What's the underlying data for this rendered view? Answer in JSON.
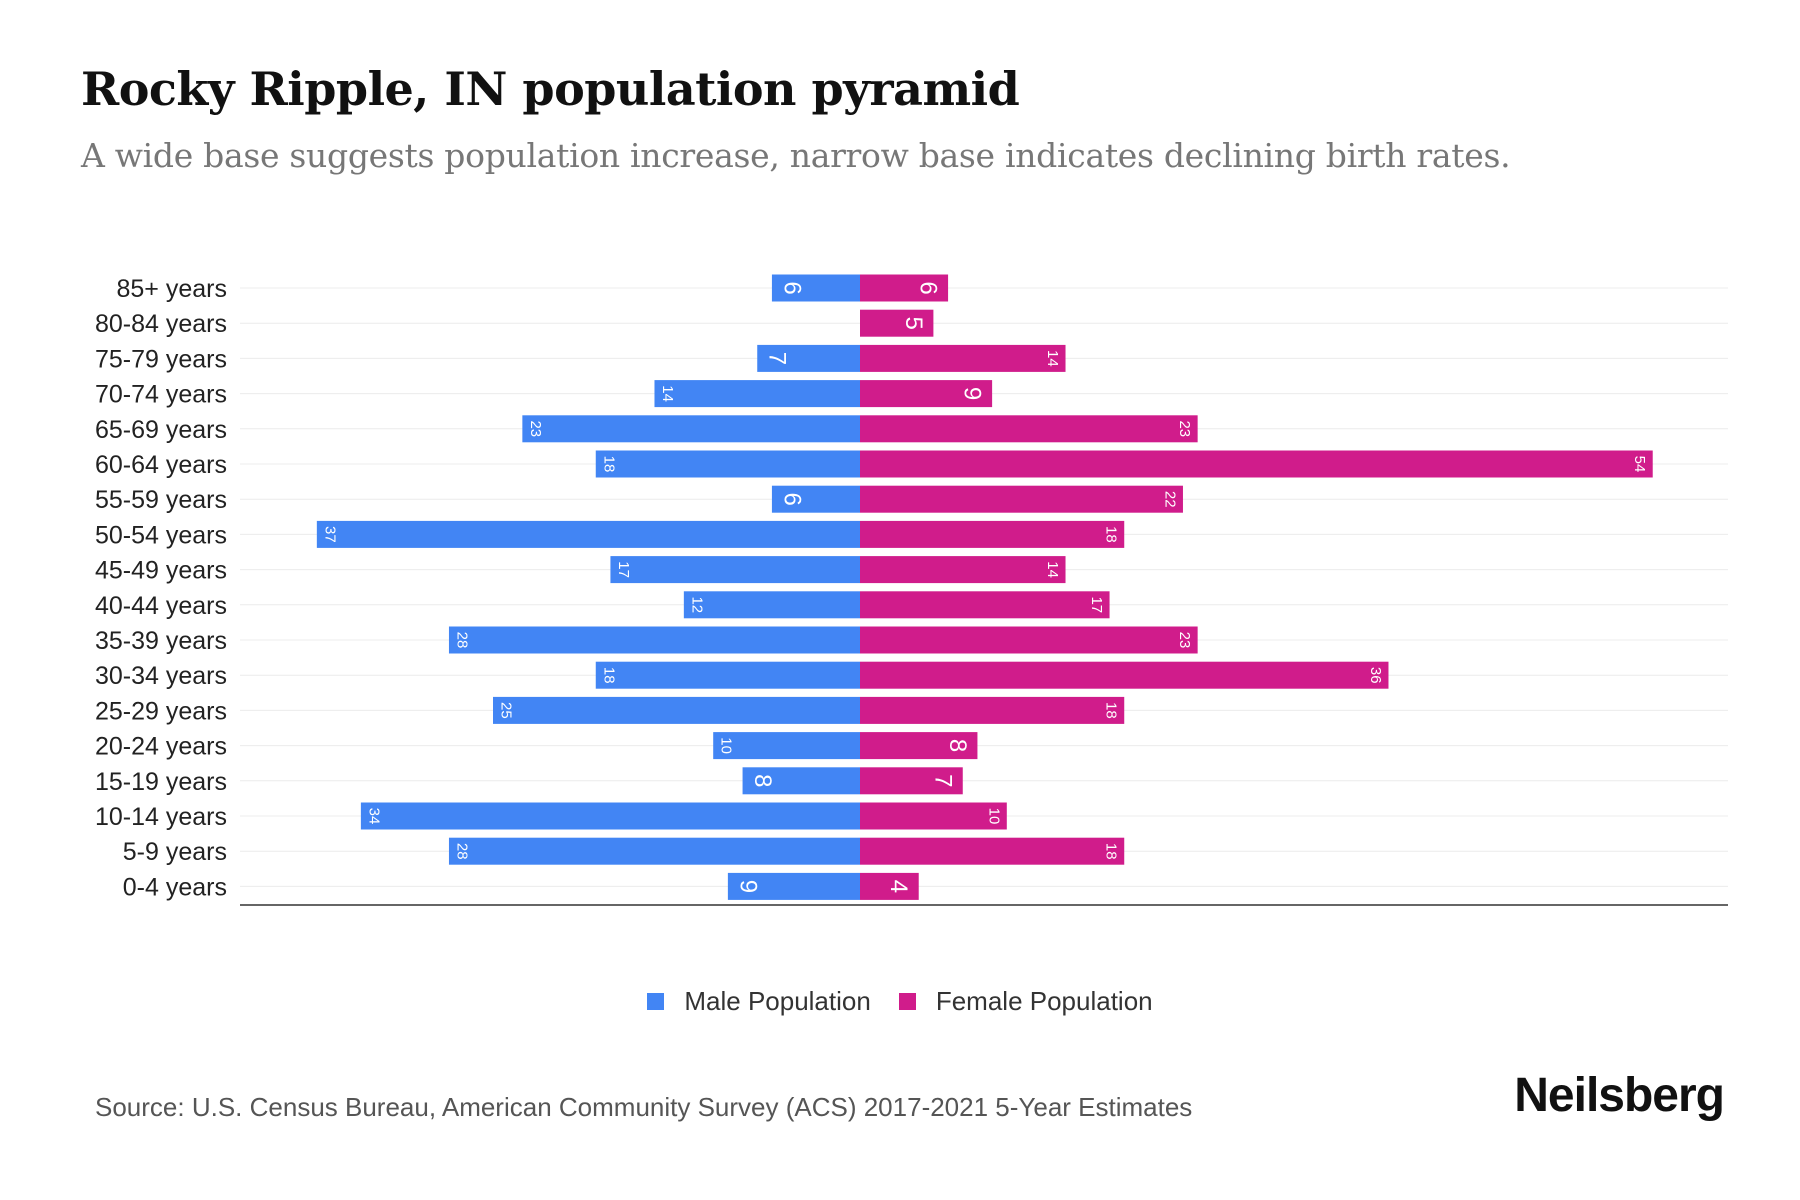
{
  "title": "Rocky Ripple, IN population pyramid",
  "subtitle": "A wide base suggests population increase, narrow base indicates declining birth rates.",
  "source": "Source: U.S. Census Bureau, American Community Survey (ACS) 2017-2021 5-Year Estimates",
  "logo": "Neilsberg",
  "chart_data": {
    "type": "bar",
    "orientation": "horizontal-pyramid",
    "title": "Rocky Ripple, IN population pyramid",
    "categories": [
      "85+ years",
      "80-84 years",
      "75-79 years",
      "70-74 years",
      "65-69 years",
      "60-64 years",
      "55-59 years",
      "50-54 years",
      "45-49 years",
      "40-44 years",
      "35-39 years",
      "30-34 years",
      "25-29 years",
      "20-24 years",
      "15-19 years",
      "10-14 years",
      "5-9 years",
      "0-4 years"
    ],
    "series": [
      {
        "name": "Male Population",
        "color": "#4285f4",
        "values": [
          6,
          0,
          7,
          14,
          23,
          18,
          6,
          37,
          17,
          12,
          28,
          18,
          25,
          10,
          8,
          34,
          28,
          9
        ]
      },
      {
        "name": "Female Population",
        "color": "#d01c8b",
        "values": [
          6,
          5,
          14,
          9,
          23,
          54,
          22,
          18,
          14,
          17,
          23,
          36,
          18,
          8,
          7,
          10,
          18,
          4
        ]
      }
    ],
    "grid": true,
    "legend_position": "bottom-center"
  }
}
